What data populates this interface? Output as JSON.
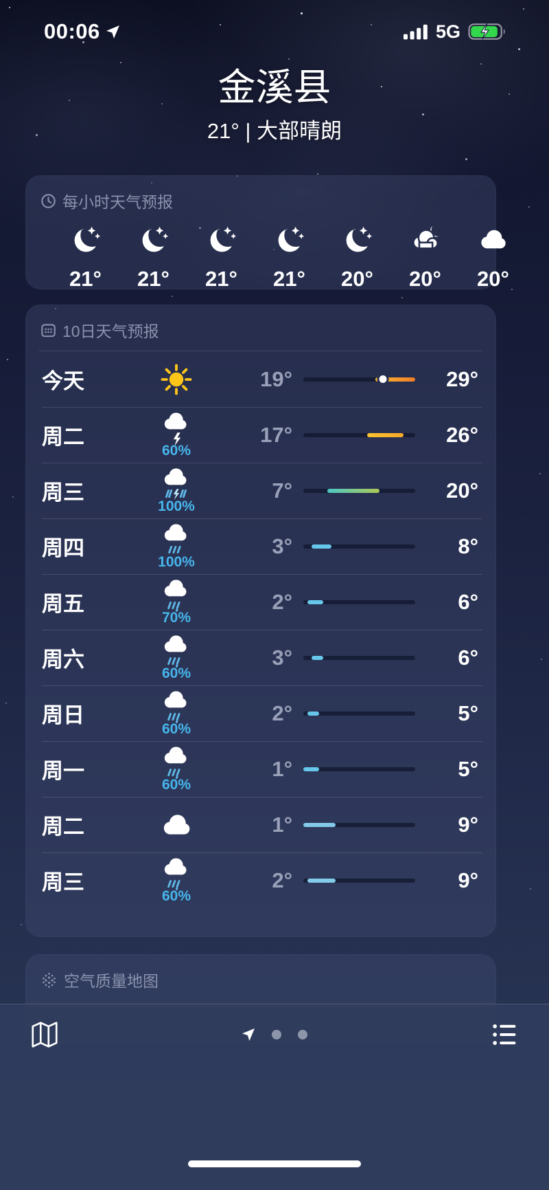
{
  "status_bar": {
    "time": "00:06",
    "network": "5G",
    "signal_bars": 4,
    "battery": {
      "charging": true,
      "color": "#32d74b"
    }
  },
  "header": {
    "location": "金溪县",
    "summary": "21° | 大部晴朗"
  },
  "hourly": {
    "title": "每小时天气预报",
    "items": [
      {
        "icon": "moon-stars",
        "temp": "21°"
      },
      {
        "icon": "moon-stars",
        "temp": "21°"
      },
      {
        "icon": "moon-stars",
        "temp": "21°"
      },
      {
        "icon": "moon-stars",
        "temp": "21°"
      },
      {
        "icon": "moon-stars",
        "temp": "20°"
      },
      {
        "icon": "cloud-moon",
        "temp": "20°"
      },
      {
        "icon": "cloud",
        "temp": "20°"
      }
    ]
  },
  "daily": {
    "title": "10日天气预报",
    "temp_scale": {
      "min": 1,
      "max": 29
    },
    "rows": [
      {
        "day": "今天",
        "icon": "sun",
        "precip": "",
        "low": "19°",
        "high": "29°",
        "bar": {
          "start": 64.3,
          "end": 100,
          "colors": [
            "#fdbb2e",
            "#f07d28"
          ],
          "dot": 71.4
        }
      },
      {
        "day": "周二",
        "icon": "cloud-bolt",
        "precip": "60%",
        "low": "17°",
        "high": "26°",
        "bar": {
          "start": 57.1,
          "end": 89.3,
          "colors": [
            "#f9c32e",
            "#f6a929"
          ]
        }
      },
      {
        "day": "周三",
        "icon": "cloud-storm",
        "precip": "100%",
        "low": "7°",
        "high": "20°",
        "bar": {
          "start": 21.4,
          "end": 67.9,
          "colors": [
            "#4cc8c5",
            "#adc857"
          ]
        }
      },
      {
        "day": "周四",
        "icon": "cloud-heavy-rain",
        "precip": "100%",
        "low": "3°",
        "high": "8°",
        "bar": {
          "start": 7.1,
          "end": 25,
          "colors": [
            "#66c7ea",
            "#66c7ea"
          ]
        }
      },
      {
        "day": "周五",
        "icon": "cloud-rain",
        "precip": "70%",
        "low": "2°",
        "high": "6°",
        "bar": {
          "start": 3.6,
          "end": 17.9,
          "colors": [
            "#66c7ea",
            "#66c7ea"
          ]
        }
      },
      {
        "day": "周六",
        "icon": "cloud-rain",
        "precip": "60%",
        "low": "3°",
        "high": "6°",
        "bar": {
          "start": 7.1,
          "end": 17.9,
          "colors": [
            "#66c7ea",
            "#66c7ea"
          ]
        }
      },
      {
        "day": "周日",
        "icon": "cloud-rain",
        "precip": "60%",
        "low": "2°",
        "high": "5°",
        "bar": {
          "start": 3.6,
          "end": 14.3,
          "colors": [
            "#66c7ea",
            "#66c7ea"
          ]
        }
      },
      {
        "day": "周一",
        "icon": "cloud-rain",
        "precip": "60%",
        "low": "1°",
        "high": "5°",
        "bar": {
          "start": 0,
          "end": 14.3,
          "colors": [
            "#66c7ea",
            "#66c7ea"
          ]
        }
      },
      {
        "day": "周二",
        "icon": "cloud",
        "precip": "",
        "low": "1°",
        "high": "9°",
        "bar": {
          "start": 0,
          "end": 28.6,
          "colors": [
            "#82cbe9",
            "#82cbe9"
          ]
        }
      },
      {
        "day": "周三",
        "icon": "cloud-rain",
        "precip": "60%",
        "low": "2°",
        "high": "9°",
        "bar": {
          "start": 3.6,
          "end": 28.6,
          "colors": [
            "#82cbe9",
            "#82cbe9"
          ]
        }
      }
    ]
  },
  "air_quality": {
    "title": "空气质量地图"
  },
  "bottom_bar": {
    "page_dots": 2
  },
  "colors": {
    "accent_precip": "#47b6ec",
    "card_bg": "rgba(64,74,112,0.40)",
    "low_temp_text": "#99a0b8",
    "header_text": "#8a92ae"
  }
}
